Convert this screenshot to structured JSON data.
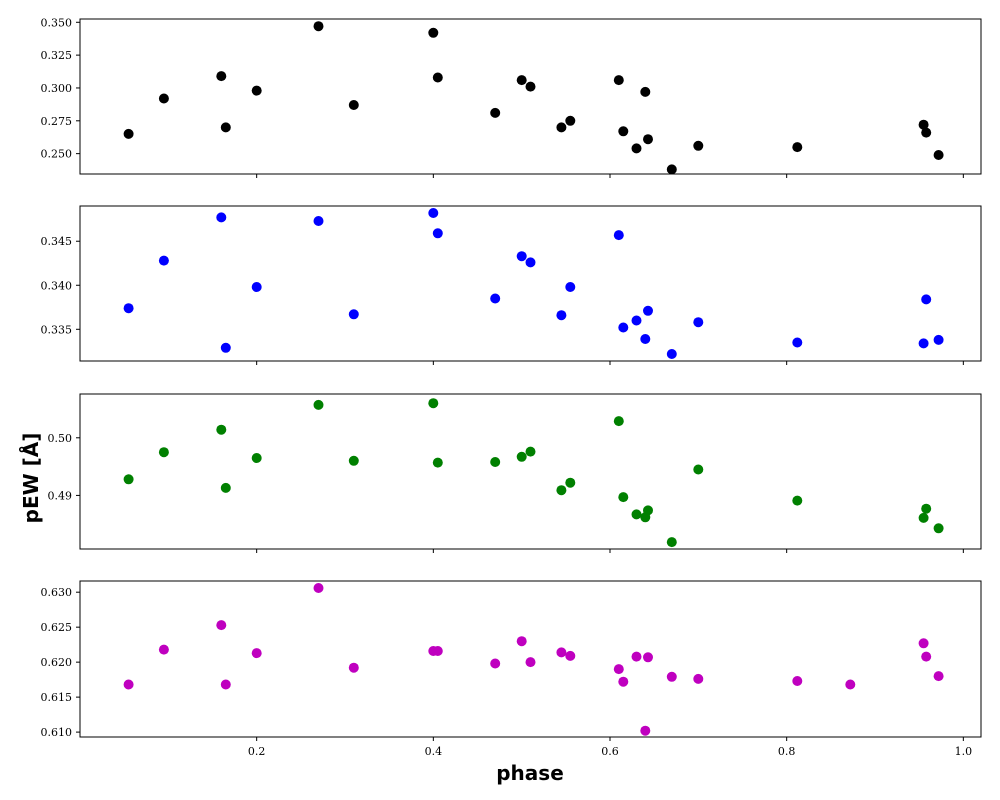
{
  "chart_data": {
    "type": "scatter",
    "xlabel": "phase",
    "ylabel": "pEW [Å]",
    "xlim": [
      0.0,
      1.02
    ],
    "x_ticks": [
      0.2,
      0.4,
      0.6,
      0.8,
      1.0
    ],
    "x_tick_labels": [
      "0.2",
      "0.4",
      "0.6",
      "0.8",
      "1.0"
    ],
    "grid": false,
    "legend": "none",
    "subplots": [
      {
        "color": "#000000",
        "ylim": [
          0.2345,
          0.3525
        ],
        "y_ticks": [
          0.25,
          0.275,
          0.3,
          0.325,
          0.35
        ],
        "y_tick_labels": [
          "0.250",
          "0.275",
          "0.300",
          "0.325",
          "0.350"
        ],
        "points": [
          [
            0.055,
            0.265
          ],
          [
            0.095,
            0.292
          ],
          [
            0.16,
            0.309
          ],
          [
            0.165,
            0.27
          ],
          [
            0.2,
            0.298
          ],
          [
            0.27,
            0.347
          ],
          [
            0.31,
            0.287
          ],
          [
            0.4,
            0.342
          ],
          [
            0.405,
            0.308
          ],
          [
            0.47,
            0.281
          ],
          [
            0.5,
            0.306
          ],
          [
            0.51,
            0.301
          ],
          [
            0.545,
            0.27
          ],
          [
            0.555,
            0.275
          ],
          [
            0.61,
            0.306
          ],
          [
            0.615,
            0.267
          ],
          [
            0.63,
            0.254
          ],
          [
            0.64,
            0.297
          ],
          [
            0.643,
            0.261
          ],
          [
            0.67,
            0.238
          ],
          [
            0.7,
            0.256
          ],
          [
            0.812,
            0.255
          ],
          [
            0.955,
            0.272
          ],
          [
            0.958,
            0.266
          ],
          [
            0.972,
            0.249
          ]
        ]
      },
      {
        "color": "#0000ff",
        "ylim": [
          0.3314,
          0.349
        ],
        "y_ticks": [
          0.335,
          0.34,
          0.345
        ],
        "y_tick_labels": [
          "0.335",
          "0.340",
          "0.345"
        ],
        "points": [
          [
            0.055,
            0.3374
          ],
          [
            0.095,
            0.3428
          ],
          [
            0.16,
            0.3477
          ],
          [
            0.165,
            0.3329
          ],
          [
            0.2,
            0.3398
          ],
          [
            0.27,
            0.3473
          ],
          [
            0.31,
            0.3367
          ],
          [
            0.4,
            0.3482
          ],
          [
            0.405,
            0.3459
          ],
          [
            0.47,
            0.3385
          ],
          [
            0.5,
            0.3433
          ],
          [
            0.51,
            0.3426
          ],
          [
            0.545,
            0.3366
          ],
          [
            0.555,
            0.3398
          ],
          [
            0.61,
            0.3457
          ],
          [
            0.615,
            0.3352
          ],
          [
            0.63,
            0.336
          ],
          [
            0.64,
            0.3339
          ],
          [
            0.643,
            0.3371
          ],
          [
            0.67,
            0.3322
          ],
          [
            0.7,
            0.3358
          ],
          [
            0.812,
            0.3335
          ],
          [
            0.955,
            0.3334
          ],
          [
            0.958,
            0.3384
          ],
          [
            0.972,
            0.3338
          ]
        ]
      },
      {
        "color": "#008000",
        "ylim": [
          0.4807,
          0.5076
        ],
        "y_ticks": [
          0.49,
          0.5
        ],
        "y_tick_labels": [
          "0.49",
          "0.50"
        ],
        "points": [
          [
            0.055,
            0.4928
          ],
          [
            0.095,
            0.4975
          ],
          [
            0.16,
            0.5014
          ],
          [
            0.165,
            0.4913
          ],
          [
            0.2,
            0.4965
          ],
          [
            0.27,
            0.5057
          ],
          [
            0.31,
            0.496
          ],
          [
            0.4,
            0.506
          ],
          [
            0.405,
            0.4957
          ],
          [
            0.47,
            0.4958
          ],
          [
            0.5,
            0.4967
          ],
          [
            0.51,
            0.4976
          ],
          [
            0.545,
            0.4909
          ],
          [
            0.555,
            0.4922
          ],
          [
            0.61,
            0.5029
          ],
          [
            0.615,
            0.4897
          ],
          [
            0.63,
            0.4867
          ],
          [
            0.64,
            0.4862
          ],
          [
            0.643,
            0.4874
          ],
          [
            0.67,
            0.4819
          ],
          [
            0.7,
            0.4945
          ],
          [
            0.812,
            0.4891
          ],
          [
            0.955,
            0.4861
          ],
          [
            0.958,
            0.4877
          ],
          [
            0.972,
            0.4843
          ]
        ]
      },
      {
        "color": "#bf00bf",
        "ylim": [
          0.6093,
          0.6316
        ],
        "y_ticks": [
          0.61,
          0.615,
          0.62,
          0.625,
          0.63
        ],
        "y_tick_labels": [
          "0.610",
          "0.615",
          "0.620",
          "0.625",
          "0.630"
        ],
        "points": [
          [
            0.055,
            0.6168
          ],
          [
            0.095,
            0.6218
          ],
          [
            0.16,
            0.6253
          ],
          [
            0.165,
            0.6168
          ],
          [
            0.2,
            0.6213
          ],
          [
            0.27,
            0.6306
          ],
          [
            0.31,
            0.6192
          ],
          [
            0.4,
            0.6216
          ],
          [
            0.405,
            0.6216
          ],
          [
            0.47,
            0.6198
          ],
          [
            0.5,
            0.623
          ],
          [
            0.51,
            0.62
          ],
          [
            0.545,
            0.6214
          ],
          [
            0.555,
            0.6209
          ],
          [
            0.61,
            0.619
          ],
          [
            0.615,
            0.6172
          ],
          [
            0.63,
            0.6208
          ],
          [
            0.64,
            0.6102
          ],
          [
            0.643,
            0.6207
          ],
          [
            0.67,
            0.6179
          ],
          [
            0.7,
            0.6176
          ],
          [
            0.812,
            0.6173
          ],
          [
            0.872,
            0.6168
          ],
          [
            0.955,
            0.6227
          ],
          [
            0.958,
            0.6208
          ],
          [
            0.972,
            0.618
          ]
        ]
      }
    ]
  }
}
